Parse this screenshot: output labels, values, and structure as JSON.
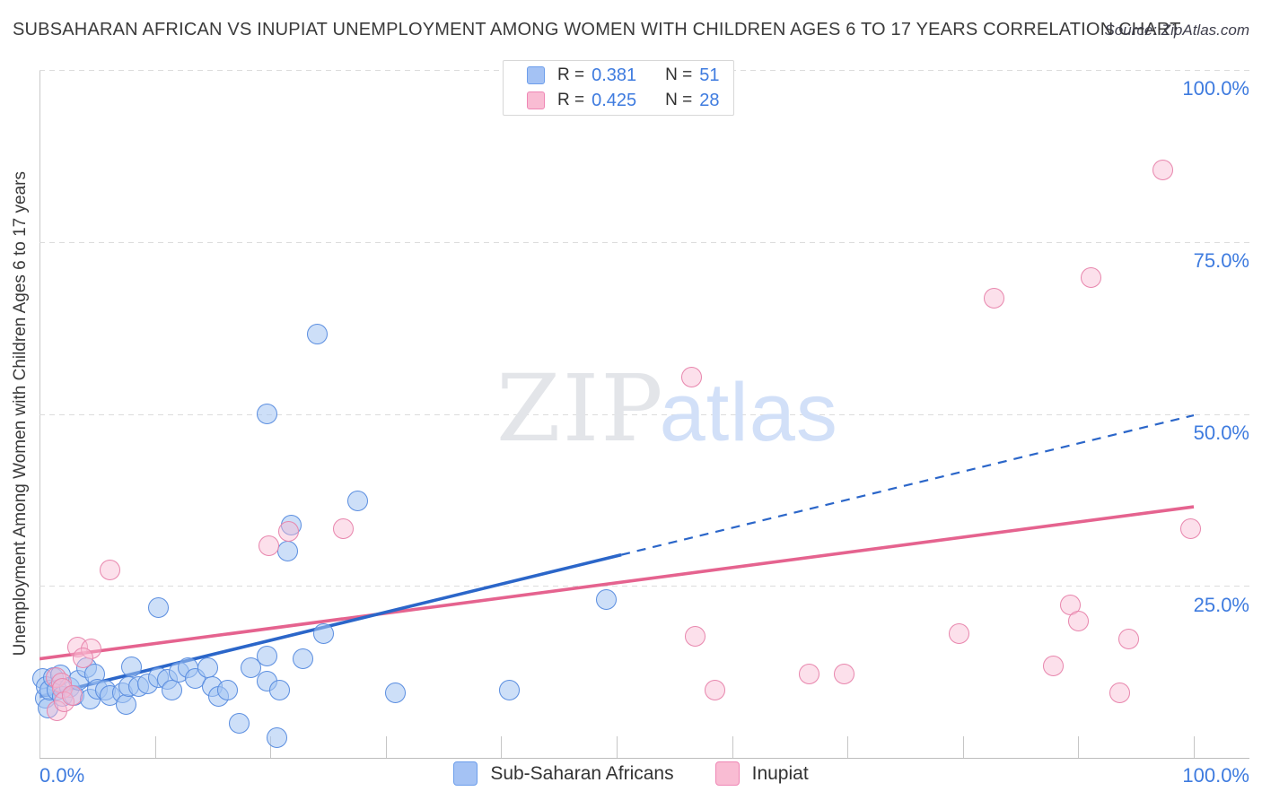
{
  "title": "SUBSAHARAN AFRICAN VS INUPIAT UNEMPLOYMENT AMONG WOMEN WITH CHILDREN AGES 6 TO 17 YEARS CORRELATION CHART",
  "source": "Source: ZipAtlas.com",
  "y_axis_title": "Unemployment Among Women with Children Ages 6 to 17 years",
  "watermark": {
    "zip": "ZIP",
    "atlas": "atlas"
  },
  "legend_box": {
    "rows": [
      {
        "series": "Sub-Saharan Africans",
        "r_label": "R =",
        "r_value": "0.381",
        "n_label": "N =",
        "n_value": "51"
      },
      {
        "series": "Inupiat",
        "r_label": "R =",
        "r_value": "0.425",
        "n_label": "N =",
        "n_value": "28"
      }
    ]
  },
  "axis": {
    "right_labels": [
      "100.0%",
      "75.0%",
      "50.0%",
      "25.0%"
    ],
    "x_min_label": "0.0%",
    "x_max_label": "100.0%"
  },
  "bottom_legend": [
    {
      "label": "Sub-Saharan Africans",
      "color": "blue"
    },
    {
      "label": "Inupiat",
      "color": "pink"
    }
  ],
  "colors": {
    "blue_point_border": "#5b8ee0",
    "blue_point_fill": "rgba(164,197,242,0.55)",
    "pink_point_border": "#e886ad",
    "pink_point_fill": "rgba(248,187,211,0.45)",
    "blue_trend": "#2b66c9",
    "pink_trend": "#e5638f",
    "axis_text": "#3e7bdf",
    "gridline": "#dcdcdc"
  },
  "chart_data": {
    "type": "scatter",
    "xlabel": "",
    "ylabel": "Unemployment Among Women with Children Ages 6 to 17 years",
    "xlim": [
      0,
      100
    ],
    "ylim": [
      0,
      100
    ],
    "x_ticks_pct": [
      10,
      20,
      30,
      40,
      50,
      60,
      70,
      80,
      90,
      100
    ],
    "y_gridlines_pct": [
      25,
      50,
      75,
      100
    ],
    "series": [
      {
        "name": "Sub-Saharan Africans",
        "r": 0.381,
        "n": 51,
        "points": [
          [
            0.3,
            11.5
          ],
          [
            0.5,
            8.7
          ],
          [
            0.6,
            10.4
          ],
          [
            0.7,
            7.2
          ],
          [
            0.9,
            9.9
          ],
          [
            1.2,
            11.7
          ],
          [
            1.5,
            9.8
          ],
          [
            1.8,
            12.0
          ],
          [
            2.0,
            8.9
          ],
          [
            2.6,
            10.2
          ],
          [
            3.0,
            9.1
          ],
          [
            3.4,
            11.3
          ],
          [
            4.1,
            13.1
          ],
          [
            4.4,
            8.5
          ],
          [
            4.8,
            12.2
          ],
          [
            5.0,
            10.0
          ],
          [
            5.7,
            9.8
          ],
          [
            6.1,
            9.1
          ],
          [
            7.2,
            9.4
          ],
          [
            7.5,
            7.8
          ],
          [
            7.7,
            10.4
          ],
          [
            8.0,
            13.2
          ],
          [
            8.6,
            10.4
          ],
          [
            9.4,
            10.7
          ],
          [
            10.3,
            11.7
          ],
          [
            11.1,
            11.4
          ],
          [
            11.5,
            9.8
          ],
          [
            12.1,
            12.4
          ],
          [
            12.9,
            13.1
          ],
          [
            13.5,
            11.6
          ],
          [
            14.6,
            13.1
          ],
          [
            15.0,
            10.4
          ],
          [
            15.5,
            8.9
          ],
          [
            16.3,
            9.8
          ],
          [
            17.3,
            5.0
          ],
          [
            18.3,
            13.1
          ],
          [
            19.7,
            14.8
          ],
          [
            19.7,
            11.1
          ],
          [
            20.8,
            9.8
          ],
          [
            10.3,
            21.9
          ],
          [
            20.6,
            2.9
          ],
          [
            21.5,
            30.0
          ],
          [
            21.8,
            33.8
          ],
          [
            22.8,
            14.4
          ],
          [
            24.1,
            61.6
          ],
          [
            19.7,
            50.0
          ],
          [
            24.6,
            18.0
          ],
          [
            27.6,
            37.3
          ],
          [
            30.8,
            9.4
          ],
          [
            40.7,
            9.9
          ],
          [
            49.1,
            23.0
          ]
        ]
      },
      {
        "name": "Inupiat",
        "r": 0.425,
        "n": 28,
        "points": [
          [
            1.4,
            11.7
          ],
          [
            1.9,
            10.9
          ],
          [
            2.0,
            10.1
          ],
          [
            1.5,
            6.8
          ],
          [
            2.1,
            8.1
          ],
          [
            2.8,
            9.1
          ],
          [
            3.3,
            16.1
          ],
          [
            4.5,
            15.8
          ],
          [
            3.8,
            14.6
          ],
          [
            6.1,
            27.3
          ],
          [
            19.9,
            30.8
          ],
          [
            21.6,
            32.9
          ],
          [
            26.3,
            33.3
          ],
          [
            56.5,
            55.3
          ],
          [
            56.8,
            17.7
          ],
          [
            58.5,
            9.8
          ],
          [
            66.7,
            12.2
          ],
          [
            69.7,
            12.2
          ],
          [
            79.7,
            18.1
          ],
          [
            82.7,
            66.8
          ],
          [
            87.8,
            13.3
          ],
          [
            89.3,
            22.2
          ],
          [
            90.0,
            19.9
          ],
          [
            91.1,
            69.8
          ],
          [
            94.4,
            17.3
          ],
          [
            93.6,
            9.4
          ],
          [
            97.3,
            85.5
          ],
          [
            99.7,
            33.3
          ]
        ]
      }
    ],
    "trendlines": [
      {
        "series": "Inupiat",
        "start": [
          0,
          14.4
        ],
        "end": [
          100,
          36.5
        ],
        "solid_until_x": 100,
        "color": "#e5638f"
      },
      {
        "series": "Sub-Saharan Africans",
        "start": [
          0,
          8.9
        ],
        "end": [
          100,
          49.8
        ],
        "solid_until_x": 50.4,
        "color": "#2b66c9"
      }
    ]
  }
}
